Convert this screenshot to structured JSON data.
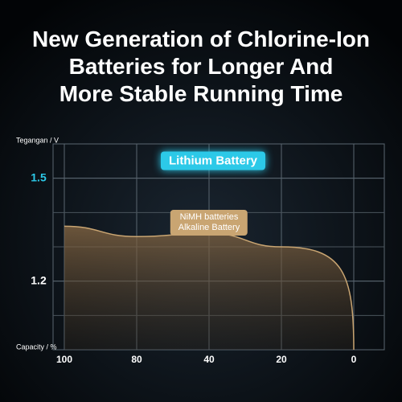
{
  "chart_data": {
    "type": "line",
    "title": "New Generation of Chlorine-Ion\nBatteries for Longer And\nMore Stable Running Time",
    "y_label": "Tegangan / V",
    "x_label": "Capacity / %",
    "categories": [
      "100",
      "80",
      "40",
      "20",
      "0"
    ],
    "ylim": [
      1.0,
      1.6
    ],
    "yticks": [
      1.5,
      1.2
    ],
    "grid": true,
    "series": [
      {
        "name": "Lithium Battery",
        "color": "#2cc9e8",
        "values": [
          1.5,
          1.5,
          1.5,
          1.5,
          1.5
        ]
      },
      {
        "name": "NiMH batteries\nAlkaline Battery",
        "color": "#c9a572",
        "values": [
          1.36,
          1.33,
          1.34,
          1.3,
          1.0
        ]
      }
    ]
  }
}
